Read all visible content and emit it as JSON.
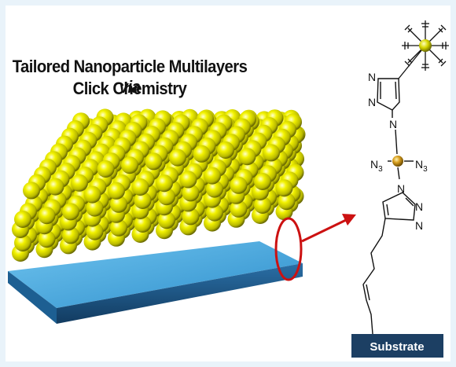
{
  "title": {
    "line1_main": "Tailored Nanoparticle Multilayers ",
    "line1_italic": "via",
    "line2": "Click Chemistry"
  },
  "slab": {
    "label": "Substrate"
  },
  "molecule": {
    "atom_n": "N",
    "azide_main": "N",
    "azide_sub": "3",
    "substrate_label": "Substrate"
  },
  "colors": {
    "background": "#e9f3fa",
    "particle": "#e6e600",
    "slab_top": "#3da4dc",
    "slab_front": "#1a5a8a",
    "arrow": "#cc1111",
    "substrate_box": "#1c3f63",
    "metal_atom": "#c08a1e"
  },
  "icons": [
    "nanoparticle-sphere",
    "highlight-ellipse",
    "pointer-arrow",
    "triazole-ring",
    "metal-center-atom"
  ]
}
